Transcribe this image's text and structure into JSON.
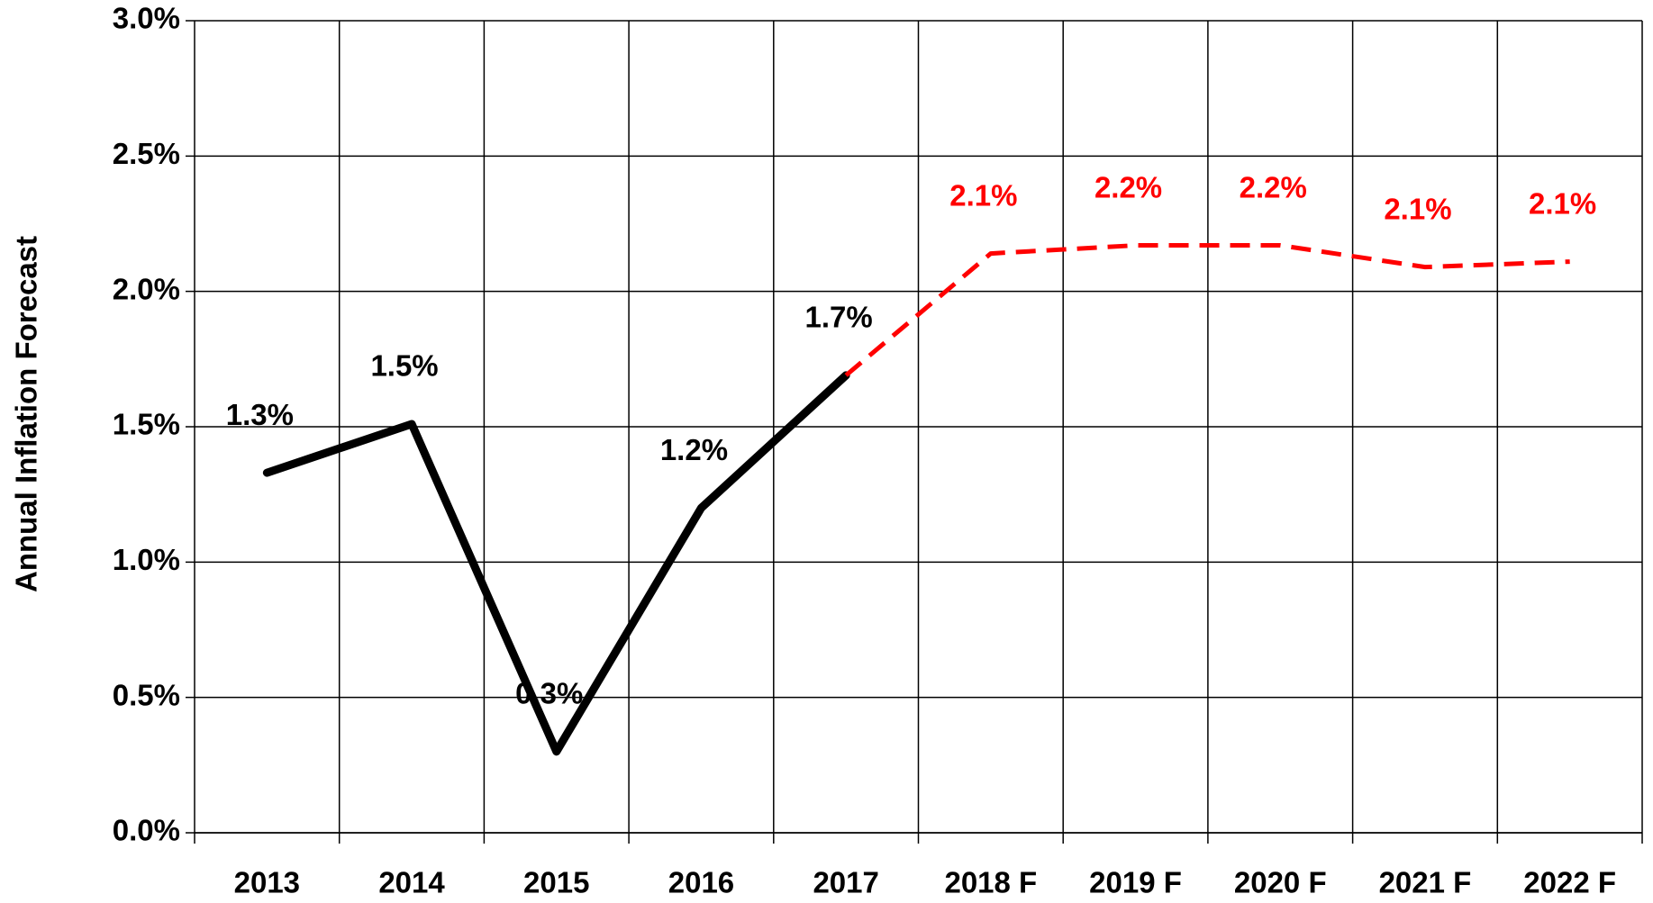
{
  "chart_data": {
    "type": "line",
    "y_label": "Annual Inflation Forecast",
    "categories": [
      "2013",
      "2014",
      "2015",
      "2016",
      "2017",
      "2018 F",
      "2019 F",
      "2020 F",
      "2021 F",
      "2022 F"
    ],
    "series": [
      {
        "color": "#000000",
        "dashed": false,
        "values": [
          1.33,
          1.51,
          0.3,
          1.2,
          1.69,
          null,
          null,
          null,
          null,
          null
        ],
        "value_labels": [
          "1.3%",
          "1.5%",
          "0.3%",
          "1.2%",
          "1.7%",
          null,
          null,
          null,
          null,
          null
        ]
      },
      {
        "color": "#ff0000",
        "dashed": true,
        "values": [
          null,
          null,
          null,
          null,
          1.69,
          2.14,
          2.17,
          2.17,
          2.09,
          2.11
        ],
        "value_labels": [
          null,
          null,
          null,
          null,
          null,
          "2.1%",
          "2.2%",
          "2.2%",
          "2.1%",
          "2.1%"
        ]
      }
    ],
    "ylim": [
      0,
      3
    ],
    "yticks": [
      {
        "value": 0,
        "label": "0.0%"
      },
      {
        "value": 0.5,
        "label": "0.5%"
      },
      {
        "value": 1,
        "label": "1.0%"
      },
      {
        "value": 1.5,
        "label": "1.5%"
      },
      {
        "value": 2,
        "label": "2.0%"
      },
      {
        "value": 2.5,
        "label": "2.5%"
      },
      {
        "value": 3,
        "label": "3.0%"
      }
    ],
    "grid": true
  }
}
